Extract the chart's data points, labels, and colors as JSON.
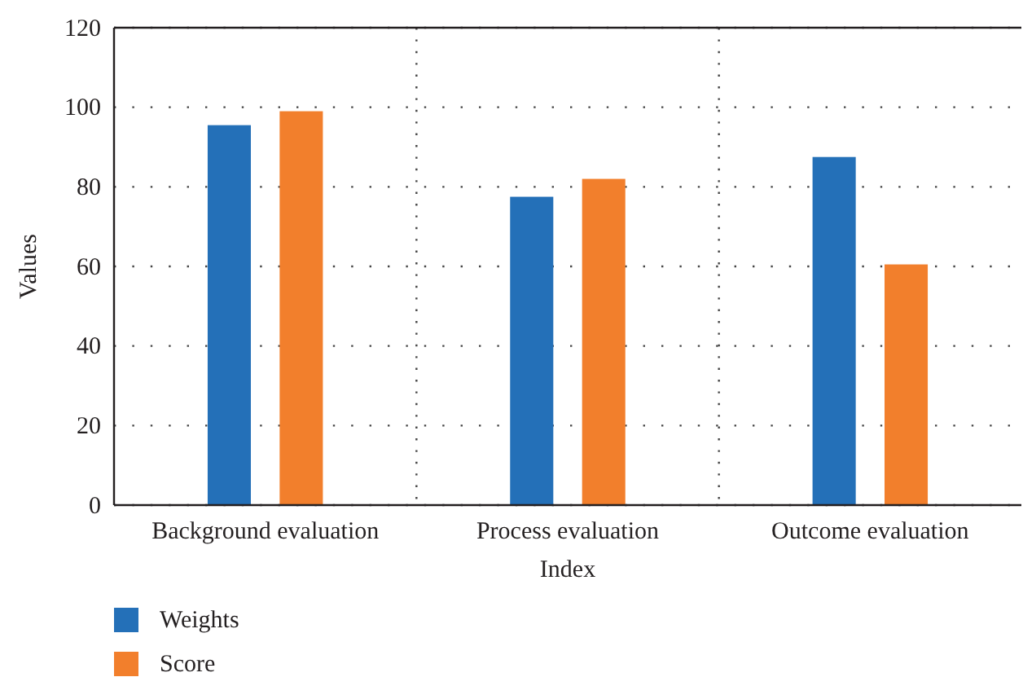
{
  "chart_data": {
    "type": "bar",
    "xlabel": "Index",
    "ylabel": "Values",
    "categories": [
      "Background evaluation",
      "Process evaluation",
      "Outcome evaluation"
    ],
    "series": [
      {
        "name": "Weights",
        "color": "#2470b8",
        "values": [
          95.5,
          77.5,
          87.5
        ]
      },
      {
        "name": "Score",
        "color": "#f27f2c",
        "values": [
          99,
          82,
          60.5
        ]
      }
    ],
    "ylim": [
      0,
      120
    ],
    "yticks": [
      0,
      20,
      40,
      60,
      80,
      100,
      120
    ],
    "grid": true,
    "legend": "bottom left"
  }
}
